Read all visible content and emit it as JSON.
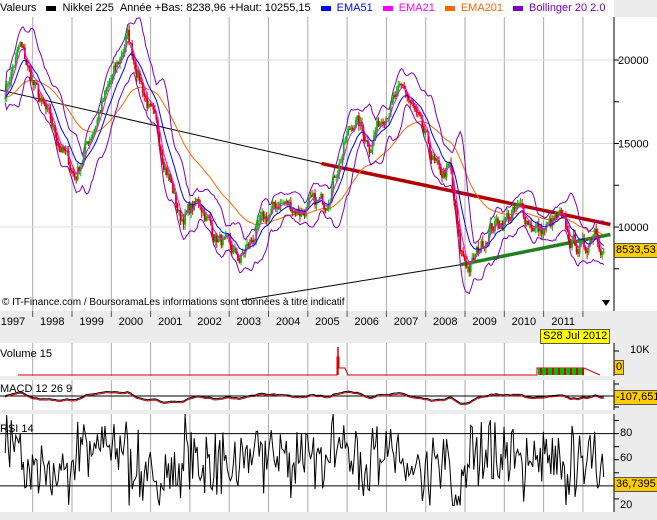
{
  "header": {
    "valeurs": "Valeurs",
    "instrument": "Nikkei 225",
    "range": "Année +Bas: 8238,96 +Haut: 10255,15",
    "legend": [
      {
        "label": "EMA51",
        "color": "#0000ff"
      },
      {
        "label": "EMA21",
        "color": "#ff00ff"
      },
      {
        "label": "EMA201",
        "color": "#ff6600"
      },
      {
        "label": "Bollinger 20 2.0",
        "color": "#8000c0"
      }
    ]
  },
  "copyright": "© IT-Finance.com / BoursoramaLes informations sont données à titre indicatif",
  "date_label": "S28 Jul 2012",
  "last_price": "8533,53",
  "volume": {
    "label": "Volume 15",
    "axis_label": "10K",
    "value": "0"
  },
  "macd": {
    "label": "MACD 12 26 9",
    "value": "-107,651"
  },
  "rsi": {
    "label": "RSI 14",
    "ticks": [
      "80",
      "60",
      "20"
    ],
    "value": "36,7395"
  },
  "chart_data": {
    "type": "candlestick",
    "title": "Nikkei 225",
    "x_ticks": [
      "1997",
      "1998",
      "1999",
      "2000",
      "2001",
      "2002",
      "2003",
      "2004",
      "2005",
      "2006",
      "2007",
      "2008",
      "2009",
      "2010",
      "2011"
    ],
    "y_ticks": [
      "20000",
      "15000",
      "10000"
    ],
    "ylim": [
      5500,
      23500
    ],
    "xlim": [
      1997.17,
      2012.7
    ],
    "price_keypoints": {
      "t": [
        1997.3,
        1997.68,
        1998.19,
        1998.69,
        1999.08,
        1999.71,
        2000.22,
        2000.4,
        2000.98,
        2001.37,
        2001.75,
        2002.26,
        2002.64,
        2003.27,
        2003.78,
        2004.29,
        2004.8,
        2005.44,
        2005.95,
        2006.2,
        2006.58,
        2006.96,
        2007.47,
        2007.85,
        2008.36,
        2008.62,
        2008.87,
        2009.13,
        2009.64,
        2010.4,
        2010.91,
        2011.42,
        2011.67,
        2012.05,
        2012.31,
        2012.54
      ],
      "close": [
        18200,
        20800,
        17500,
        15000,
        13000,
        17000,
        20000,
        21500,
        17000,
        14000,
        10500,
        11500,
        9500,
        8000,
        10000,
        11500,
        11000,
        11500,
        15000,
        16500,
        15000,
        17000,
        18200,
        16000,
        13000,
        13500,
        8500,
        7500,
        10000,
        11000,
        9700,
        10500,
        9200,
        8600,
        10200,
        8533
      ]
    },
    "trendlines": [
      {
        "name": "resistance-long",
        "color": "#000000",
        "from": [
          1997.17,
          18200
        ],
        "to": [
          2005.35,
          13800
        ]
      },
      {
        "name": "resistance-red",
        "color": "#b00000",
        "from": [
          2005.35,
          13800
        ],
        "to": [
          2012.7,
          10150
        ]
      },
      {
        "name": "support-black",
        "color": "#000000",
        "from": [
          2003.3,
          5600
        ],
        "to": [
          2008.9,
          7750
        ]
      },
      {
        "name": "support-green",
        "color": "#208020",
        "from": [
          2008.9,
          7750
        ],
        "to": [
          2012.7,
          9550
        ]
      }
    ],
    "rsi_levels": [
      70,
      30
    ]
  }
}
